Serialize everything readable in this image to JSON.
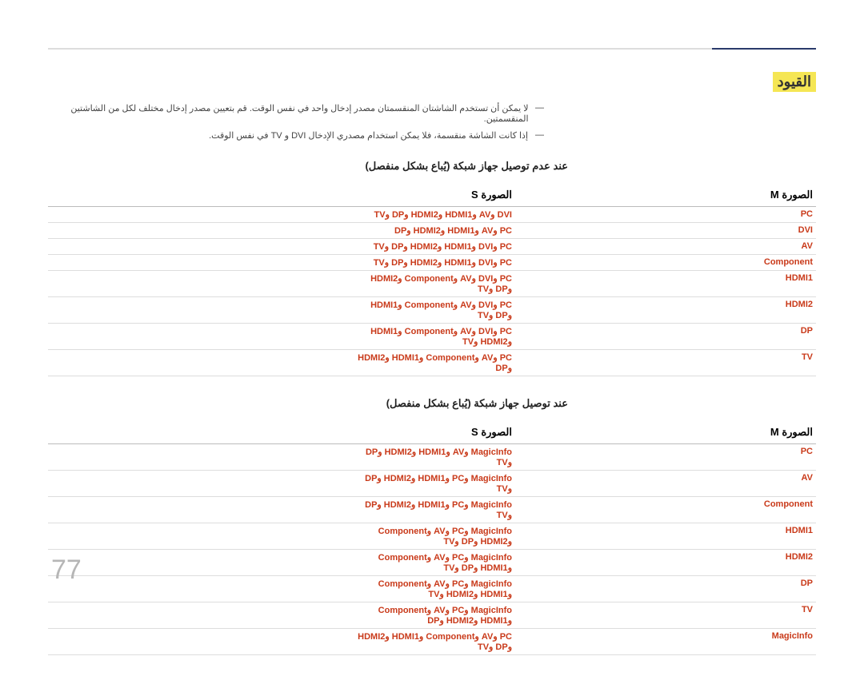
{
  "section_title": "القيود",
  "notes": [
    "لا يمكن أن تستخدم الشاشتان المنقسمتان مصدر إدخال واحد في نفس الوقت. قم بتعيين مصدر إدخال مختلف لكل من الشاشتين المنقسمتين.",
    "إذا كانت الشاشة منقسمة، فلا يمكن استخدام مصدري الإدخال DVI و TV في نفس الوقت."
  ],
  "table1_title": "عند عدم توصيل جهاز شبكة (يُباع بشكل منفصل)",
  "header_main_letter": "M",
  "header_sub_letter": "S",
  "header_text": "الصورة",
  "table1_rows": [
    {
      "main": "PC",
      "sub": "DVI وAV وHDMI1 وHDMI2 وDP وTV"
    },
    {
      "main": "DVI",
      "sub": "PC وAV وHDMI1 وHDMI2 وDP"
    },
    {
      "main": "AV",
      "sub": "PC وDVI وHDMI1 وHDMI2 وDP وTV"
    },
    {
      "main": "Component",
      "sub": "PC وDVI وHDMI1 وHDMI2 وDP وTV"
    },
    {
      "main": "HDMI1",
      "sub": "PC وDVI وAV وComponent وHDMI2 وDP وTV"
    },
    {
      "main": "HDMI2",
      "sub": "PC وDVI وAV وComponent وHDMI1 وDP وTV"
    },
    {
      "main": "DP",
      "sub": "PC وDVI وAV وComponent وHDMI1 وHDMI2 وTV"
    },
    {
      "main": "TV",
      "sub": "PC وAV وComponent وHDMI1 وHDMI2 وDP"
    }
  ],
  "table2_title": "عند توصيل جهاز شبكة (يُباع بشكل منفصل)",
  "table2_rows": [
    {
      "main": "PC",
      "sub": "MagicInfo وAV وHDMI1 وHDMI2 وDP وTV"
    },
    {
      "main": "AV",
      "sub": "MagicInfo وPC وHDMI1 وHDMI2 وDP وTV"
    },
    {
      "main": "Component",
      "sub": "MagicInfo وPC وHDMI1 وHDMI2 وDP وTV"
    },
    {
      "main": "HDMI1",
      "sub": "MagicInfo وPC وAV وComponent وHDMI2 وDP وTV"
    },
    {
      "main": "HDMI2",
      "sub": "MagicInfo وPC وAV وComponent وHDMI1 وDP وTV"
    },
    {
      "main": "DP",
      "sub": "MagicInfo وPC وAV وComponent وHDMI1 وHDMI2 وTV"
    },
    {
      "main": "TV",
      "sub": "MagicInfo وPC وAV وComponent وHDMI1 وHDMI2 وDP"
    },
    {
      "main": "MagicInfo",
      "sub": "PC وAV وComponent وHDMI1 وHDMI2 وDP وTV"
    }
  ],
  "page_number": "77"
}
